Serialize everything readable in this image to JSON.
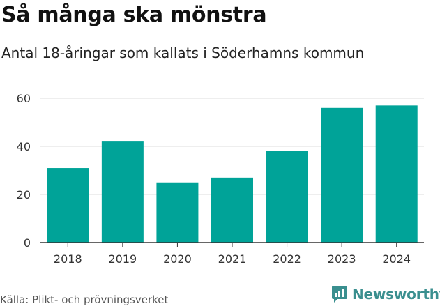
{
  "title": "Så många ska mönstra",
  "subtitle": "Antal 18-åringar som kallats i Söderhamns kommun",
  "source": "Källa: Plikt- och prövningsverket",
  "brand": {
    "name": "Newsworthy",
    "icon": "newsworthy-chart-icon",
    "color": "#3a8f8f"
  },
  "colors": {
    "bar": "#00a398",
    "grid": "#dddddd",
    "axis": "#333333"
  },
  "chart_data": {
    "type": "bar",
    "title": "Så många ska mönstra",
    "subtitle": "Antal 18-åringar som kallats i Söderhamns kommun",
    "xlabel": "",
    "ylabel": "",
    "categories": [
      "2018",
      "2019",
      "2020",
      "2021",
      "2022",
      "2023",
      "2024"
    ],
    "values": [
      31,
      42,
      25,
      27,
      38,
      56,
      57
    ],
    "ylim": [
      0,
      60
    ],
    "yticks": [
      0,
      20,
      40,
      60
    ],
    "grid": true,
    "legend": "none"
  }
}
